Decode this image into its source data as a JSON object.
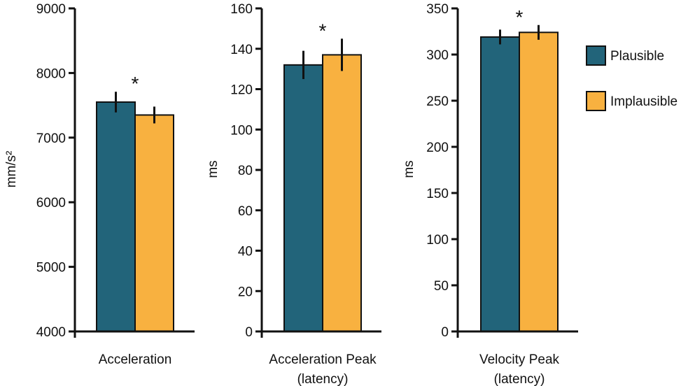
{
  "colors": {
    "plausible": "#22647a",
    "implausible": "#f8b140",
    "axis": "#111111",
    "error_bar": "#111111"
  },
  "legend": {
    "items": [
      {
        "label": "Plausible",
        "color": "#22647a"
      },
      {
        "label": "Implausible",
        "color": "#f8b140"
      }
    ]
  },
  "chart_data": [
    {
      "type": "bar",
      "categories": [
        "Acceleration"
      ],
      "xlabel_lines": [
        "Acceleration"
      ],
      "ylabel": "mm/s²",
      "ylim": [
        4000,
        9000
      ],
      "yticks": [
        4000,
        5000,
        6000,
        7000,
        8000,
        9000
      ],
      "series": [
        {
          "name": "Plausible",
          "values": [
            7550
          ],
          "error": [
            160
          ]
        },
        {
          "name": "Implausible",
          "values": [
            7350
          ],
          "error": [
            130
          ]
        }
      ],
      "annotation": "*",
      "legend": false
    },
    {
      "type": "bar",
      "categories": [
        "Acceleration Peak (latency)"
      ],
      "xlabel_lines": [
        "Acceleration Peak",
        "(latency)"
      ],
      "ylabel": "ms",
      "ylim": [
        0,
        160
      ],
      "yticks": [
        0,
        20,
        40,
        60,
        80,
        100,
        120,
        140,
        160
      ],
      "series": [
        {
          "name": "Plausible",
          "values": [
            132
          ],
          "error": [
            7
          ]
        },
        {
          "name": "Implausible",
          "values": [
            137
          ],
          "error": [
            8
          ]
        }
      ],
      "annotation": "*",
      "legend": false
    },
    {
      "type": "bar",
      "categories": [
        "Velocity Peak (latency)"
      ],
      "xlabel_lines": [
        "Velocity Peak",
        "(latency)"
      ],
      "ylabel": "ms",
      "ylim": [
        0,
        350
      ],
      "yticks": [
        0,
        50,
        100,
        150,
        200,
        250,
        300,
        350
      ],
      "series": [
        {
          "name": "Plausible",
          "values": [
            319
          ],
          "error": [
            8
          ]
        },
        {
          "name": "Implausible",
          "values": [
            324
          ],
          "error": [
            8
          ]
        }
      ],
      "annotation": "*",
      "legend": "right"
    }
  ]
}
